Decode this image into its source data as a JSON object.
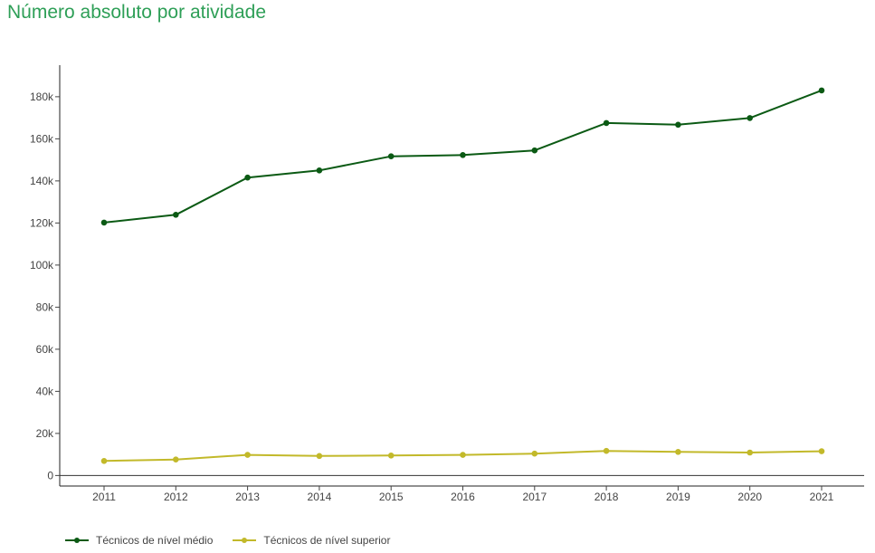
{
  "title": "Número absoluto por atividade",
  "chart_data": {
    "type": "line",
    "title": "Número absoluto por atividade",
    "xlabel": "",
    "ylabel": "",
    "x": [
      "2011",
      "2012",
      "2013",
      "2014",
      "2015",
      "2016",
      "2017",
      "2018",
      "2019",
      "2020",
      "2021"
    ],
    "ylim": [
      -5000,
      195000
    ],
    "y_ticks": [
      0,
      20000,
      40000,
      60000,
      80000,
      100000,
      120000,
      140000,
      160000,
      180000
    ],
    "y_tick_labels": [
      "0",
      "20k",
      "40k",
      "60k",
      "80k",
      "100k",
      "120k",
      "140k",
      "160k",
      "180k"
    ],
    "grid": false,
    "legend_position": "bottom-left",
    "series": [
      {
        "name": "Técnicos de nível médio",
        "color": "#0b5a14",
        "values": [
          120200,
          123900,
          141600,
          145000,
          151700,
          152300,
          154500,
          167500,
          166700,
          169900,
          183000
        ]
      },
      {
        "name": "Técnicos de nível superior",
        "color": "#c2b92a",
        "values": [
          6900,
          7600,
          9800,
          9300,
          9500,
          9800,
          10400,
          11700,
          11200,
          10900,
          11500
        ]
      }
    ]
  }
}
